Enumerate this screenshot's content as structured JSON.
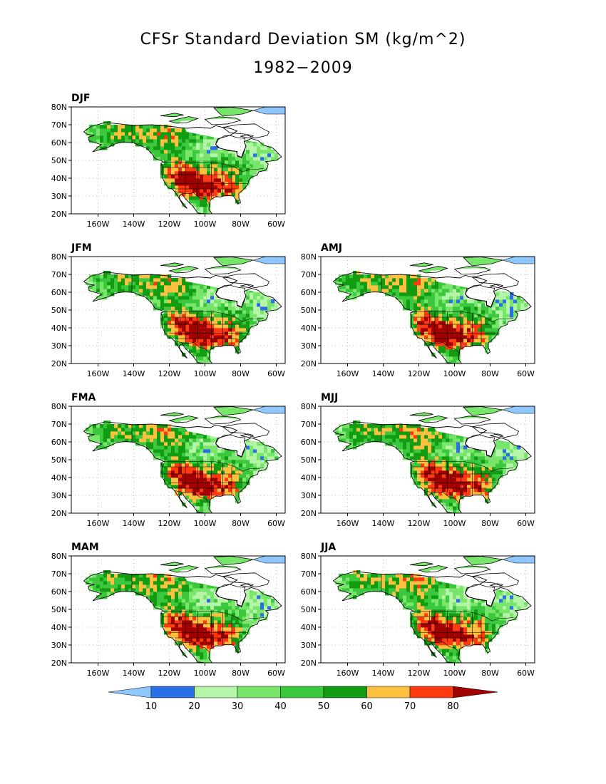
{
  "title": "CFSr Standard Deviation SM (kg/m^2)",
  "subtitle": "1982−2009",
  "panels": [
    {
      "label": "DJF",
      "seed": 1
    },
    {
      "label": "JFM",
      "seed": 2
    },
    {
      "label": "AMJ",
      "seed": 3
    },
    {
      "label": "FMA",
      "seed": 4
    },
    {
      "label": "MJJ",
      "seed": 5
    },
    {
      "label": "MAM",
      "seed": 6
    },
    {
      "label": "JJA",
      "seed": 7
    }
  ],
  "axes": {
    "lat_ticks": [
      "20N",
      "30N",
      "40N",
      "50N",
      "60N",
      "70N",
      "80N"
    ],
    "lon_ticks": [
      "160W",
      "140W",
      "120W",
      "100W",
      "80W",
      "60W"
    ],
    "lat_range": [
      20,
      80
    ],
    "lon_range": [
      -175,
      -55
    ]
  },
  "colorbar": {
    "levels": [
      10,
      20,
      30,
      40,
      50,
      60,
      70,
      80
    ],
    "tick_labels": [
      "10",
      "20",
      "30",
      "40",
      "50",
      "60",
      "70",
      "80"
    ],
    "colors": [
      "#8fc8ff",
      "#2b6fe8",
      "#b4f5a8",
      "#78e66a",
      "#3cc83c",
      "#129c12",
      "#ffc040",
      "#ff3a10",
      "#a00000"
    ]
  },
  "map_colors": {
    "ocean": "#ffffff",
    "ice": "#ffffff",
    "coast": "#000000",
    "grid": "#888888"
  }
}
